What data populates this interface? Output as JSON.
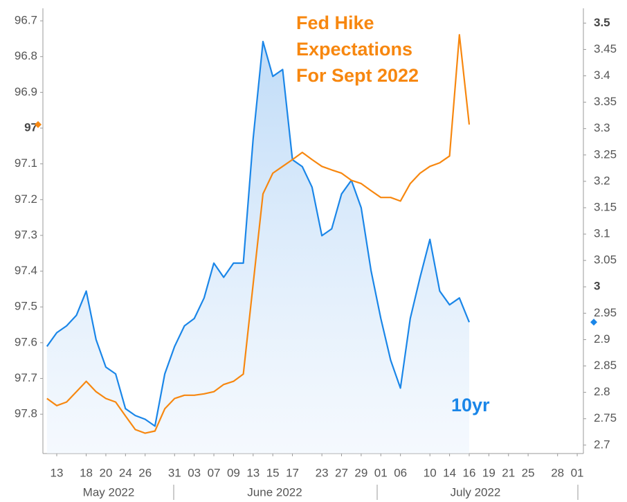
{
  "chart_data": {
    "type": "line",
    "categories": [
      null,
      "13",
      null,
      null,
      "18",
      null,
      "20",
      null,
      "24",
      null,
      "26",
      null,
      null,
      "31",
      null,
      "03",
      null,
      "07",
      null,
      "09",
      null,
      "13",
      null,
      "15",
      null,
      "17",
      null,
      null,
      "23",
      null,
      "27",
      null,
      "29",
      null,
      "01",
      null,
      "06",
      null,
      null,
      "10",
      null,
      "14",
      null,
      "16",
      null,
      "19",
      null,
      "21",
      null,
      "25",
      null,
      null,
      "28",
      null,
      "01"
    ],
    "month_labels": [
      "May 2022",
      "June 2022",
      "July 2022"
    ],
    "series": [
      {
        "name": "Fed Hike Expectations For Sept 2022",
        "color": "#f7870f",
        "axis": "y",
        "values": [
          97.756,
          97.776,
          97.766,
          97.737,
          97.708,
          97.737,
          97.756,
          97.766,
          97.805,
          97.843,
          97.853,
          97.847,
          97.785,
          97.756,
          97.747,
          97.747,
          97.743,
          97.737,
          97.717,
          97.708,
          97.688,
          97.436,
          97.184,
          97.126,
          97.107,
          97.088,
          97.068,
          97.088,
          97.107,
          97.117,
          97.126,
          97.146,
          97.155,
          97.175,
          97.194,
          97.194,
          97.204,
          97.155,
          97.126,
          97.107,
          97.097,
          97.078,
          96.739,
          96.99,
          null,
          null,
          null,
          null,
          null,
          null,
          null,
          null,
          null,
          null,
          null
        ]
      },
      {
        "name": "10yr",
        "color": "#1a86e8",
        "axis": "y2",
        "area": true,
        "values": [
          2.887,
          2.913,
          2.926,
          2.946,
          2.992,
          2.9,
          2.848,
          2.835,
          2.769,
          2.756,
          2.749,
          2.736,
          2.835,
          2.887,
          2.926,
          2.94,
          2.979,
          3.045,
          3.018,
          3.045,
          3.045,
          3.281,
          3.465,
          3.399,
          3.412,
          3.241,
          3.228,
          3.189,
          3.097,
          3.11,
          3.176,
          3.202,
          3.15,
          3.031,
          2.94,
          2.861,
          2.808,
          2.94,
          3.018,
          3.09,
          2.992,
          2.966,
          2.979,
          2.933,
          null,
          null,
          null,
          null,
          null,
          null,
          null,
          null,
          null,
          null,
          null
        ]
      }
    ],
    "ylim": [
      97.91,
      96.665
    ],
    "yticks": [
      96.7,
      96.8,
      96.9,
      97,
      97.1,
      97.2,
      97.3,
      97.4,
      97.5,
      97.6,
      97.7,
      97.8
    ],
    "y2lim": [
      2.684,
      3.528
    ],
    "y2ticks": [
      2.7,
      2.75,
      2.8,
      2.85,
      2.9,
      2.95,
      3,
      3.05,
      3.1,
      3.15,
      3.2,
      3.25,
      3.3,
      3.35,
      3.4,
      3.45,
      3.5
    ],
    "grid": false
  }
}
